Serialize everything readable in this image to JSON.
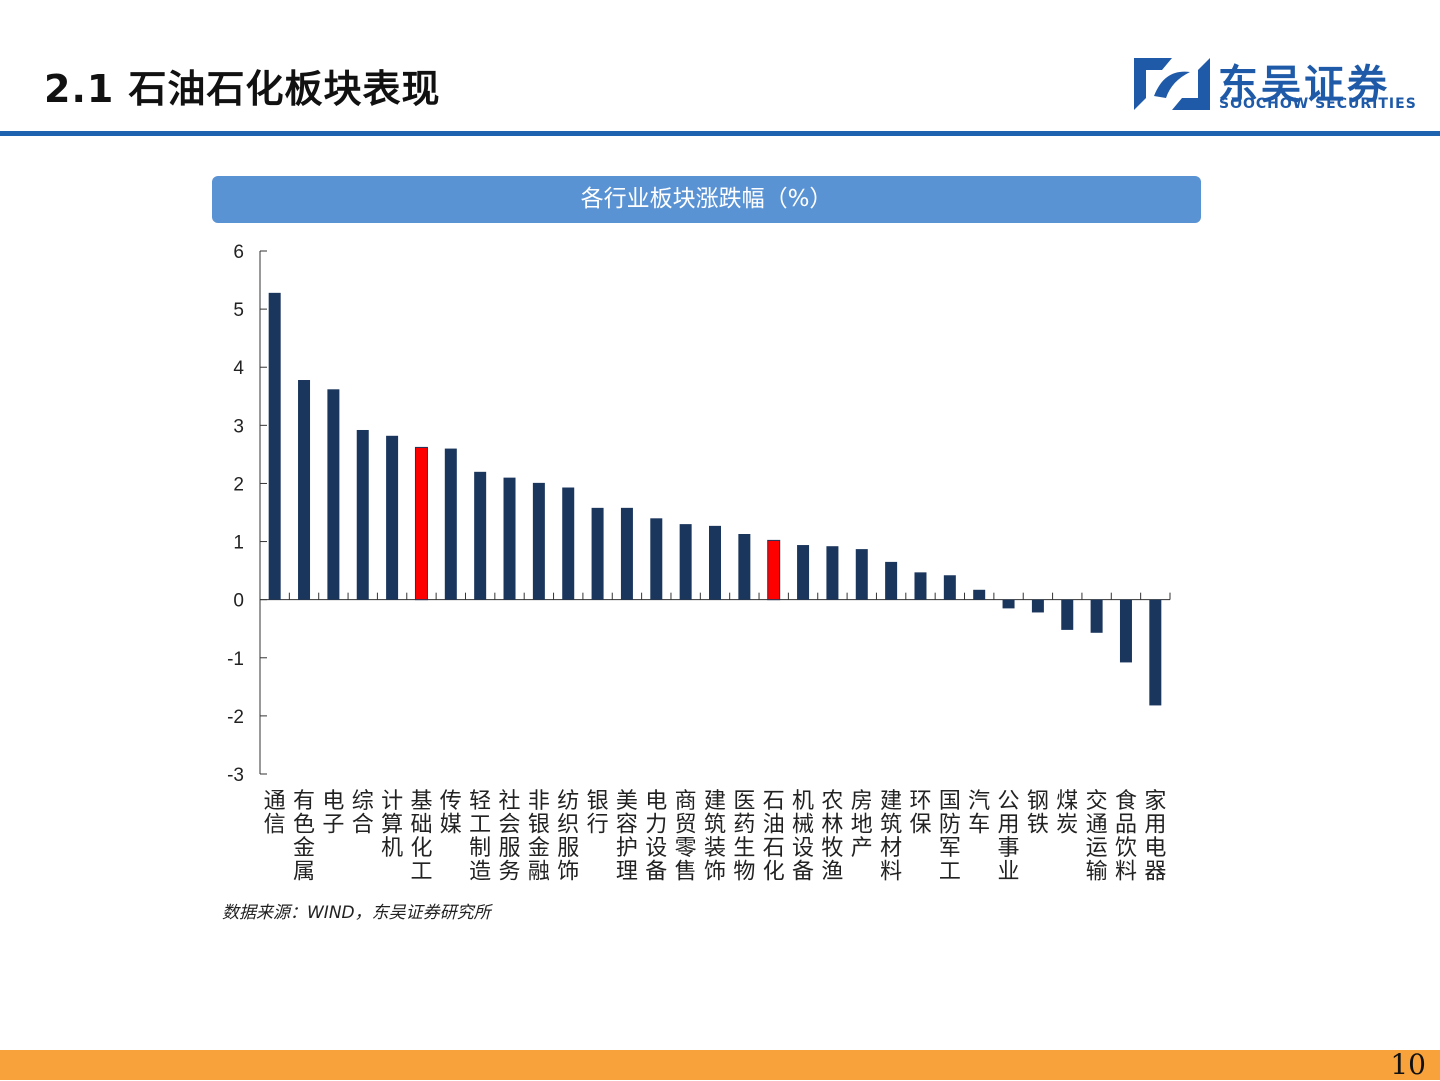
{
  "slide": {
    "title": "2.1 石油石化板块表现",
    "page_number": "10"
  },
  "logo": {
    "name_cn": "东吴证券",
    "name_en": "SOOCHOW SECURITIES"
  },
  "chart_header": "各行业板块涨跌幅（%）",
  "source": "数据来源：WIND，东吴证券研究所",
  "colors": {
    "bar_default": "#1b365d",
    "bar_highlight": "#ff0000",
    "header_bar": "#5a93d3",
    "rule": "#1e63b0",
    "footer": "#f7a23b"
  },
  "chart_data": {
    "type": "bar",
    "title": "各行业板块涨跌幅（%）",
    "xlabel": "",
    "ylabel": "",
    "ylim": [
      -3,
      6
    ],
    "yticks": [
      6,
      5,
      4,
      3,
      2,
      1,
      0,
      -1,
      -2,
      -3
    ],
    "grid": false,
    "highlight": [
      "基础化工",
      "石油石化"
    ],
    "categories": [
      "通信",
      "有色金属",
      "电子",
      "综合",
      "计算机",
      "基础化工",
      "传媒",
      "轻工制造",
      "社会服务",
      "非银金融",
      "纺织服饰",
      "银行",
      "美容护理",
      "电力设备",
      "商贸零售",
      "建筑装饰",
      "医药生物",
      "石油石化",
      "机械设备",
      "农林牧渔",
      "房地产",
      "建筑材料",
      "环保",
      "国防军工",
      "汽车",
      "公用事业",
      "钢铁",
      "煤炭",
      "交通运输",
      "食品饮料",
      "家用电器"
    ],
    "values": [
      5.28,
      3.78,
      3.62,
      2.92,
      2.82,
      2.62,
      2.6,
      2.2,
      2.1,
      2.01,
      1.93,
      1.58,
      1.58,
      1.4,
      1.3,
      1.27,
      1.13,
      1.02,
      0.94,
      0.92,
      0.87,
      0.65,
      0.47,
      0.42,
      0.17,
      -0.15,
      -0.22,
      -0.52,
      -0.57,
      -1.08,
      -1.82
    ]
  }
}
